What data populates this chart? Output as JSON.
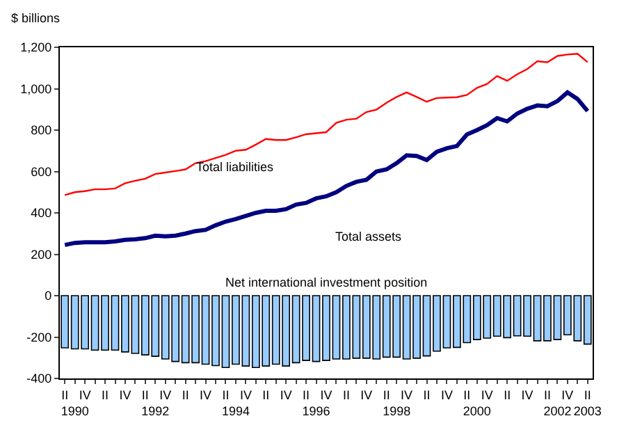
{
  "chart_data": {
    "type": "bar",
    "ylabel": "$ billions",
    "categories": [
      "II",
      "\n1990",
      "IV",
      null,
      "II",
      null,
      "IV",
      null,
      "II",
      "\n1992",
      "IV",
      null,
      "II",
      null,
      "IV",
      null,
      "II",
      "\n1994",
      "IV",
      null,
      "II",
      null,
      "IV",
      null,
      "II",
      "\n1996",
      "IV",
      null,
      "II",
      null,
      "IV",
      null,
      "II",
      "\n1998",
      "IV",
      null,
      "II",
      null,
      "IV",
      null,
      "II",
      "\n2000",
      "IV",
      null,
      "II",
      null,
      "IV",
      null,
      "II",
      "\n2002",
      "IV",
      null,
      "II\n2003"
    ],
    "ylim": [
      -400,
      1200
    ],
    "yticks": [
      -400,
      -200,
      0,
      200,
      400,
      600,
      800,
      {
        "value": 1000,
        "label": "1,000"
      },
      {
        "value": 1200,
        "label": "1,200"
      }
    ],
    "grid": false,
    "legend": false,
    "series": [
      {
        "name": "Net international investment position",
        "color": "#99ccff",
        "values": [
          -252,
          -257,
          -257,
          -263,
          -263,
          -263,
          -272,
          -279,
          -286,
          -293,
          -306,
          -318,
          -324,
          -324,
          -331,
          -338,
          -347,
          -331,
          -340,
          -347,
          -340,
          -331,
          -340,
          -324,
          -313,
          -318,
          -313,
          -306,
          -306,
          -302,
          -302,
          -306,
          -297,
          -297,
          -306,
          -302,
          -291,
          -268,
          -252,
          -250,
          -227,
          -212,
          -205,
          -196,
          -203,
          -194,
          -196,
          -218,
          -218,
          -212,
          -189,
          -218,
          -234
        ]
      },
      {
        "name": "Total liabilities",
        "type": "line",
        "color": "#ff0000",
        "values": [
          486,
          500,
          505,
          514,
          514,
          518,
          543,
          555,
          565,
          588,
          595,
          602,
          610,
          640,
          650,
          665,
          680,
          700,
          705,
          730,
          757,
          752,
          752,
          765,
          780,
          785,
          790,
          835,
          850,
          855,
          887,
          899,
          932,
          960,
          982,
          960,
          937,
          955,
          957,
          959,
          970,
          1004,
          1023,
          1061,
          1038,
          1070,
          1095,
          1133,
          1128,
          1158,
          1165,
          1169,
          1128
        ]
      },
      {
        "name": "Total assets",
        "type": "line",
        "color": "#000080",
        "values": [
          245,
          255,
          258,
          258,
          258,
          262,
          270,
          272,
          278,
          290,
          287,
          290,
          300,
          312,
          318,
          340,
          358,
          370,
          385,
          400,
          410,
          410,
          418,
          440,
          448,
          470,
          480,
          500,
          530,
          550,
          560,
          600,
          610,
          640,
          678,
          675,
          655,
          695,
          712,
          723,
          779,
          800,
          824,
          858,
          842,
          880,
          903,
          919,
          915,
          940,
          982,
          950,
          892
        ]
      }
    ]
  }
}
